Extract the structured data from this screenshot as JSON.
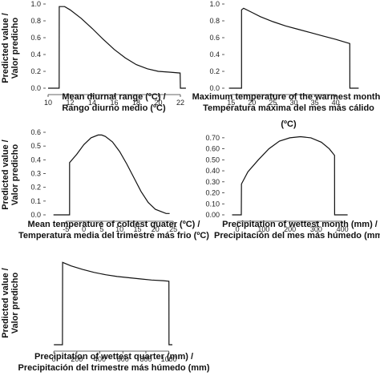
{
  "figure": {
    "ylabels": [
      [
        "Predicted value /",
        "Valor predicho"
      ],
      [
        "Predicted value /",
        "Valor predicho"
      ],
      [
        "Predicted value /",
        "Valor predicho"
      ]
    ]
  },
  "chart_data": [
    {
      "type": "line",
      "xlabel": [
        "Mean diurnal range (ºC) /",
        "Rango diurno medio (ºC)"
      ],
      "xlim": [
        10,
        22
      ],
      "ylim": [
        0,
        1.0
      ],
      "xticks": [
        10,
        12,
        14,
        16,
        18,
        20,
        22
      ],
      "yticks": [
        0,
        0.2,
        0.4,
        0.6,
        0.8,
        1.0
      ],
      "ytick_labels": [
        "0.0",
        "0.2",
        "0.4",
        "0.6",
        "0.8",
        "1.0"
      ],
      "series": [
        {
          "x": [
            10,
            11,
            11.01,
            11.5,
            12,
            13,
            14,
            15,
            16,
            17,
            18,
            19,
            20,
            21,
            21.98,
            22,
            22.5
          ],
          "y": [
            0,
            0,
            0.97,
            0.97,
            0.93,
            0.83,
            0.71,
            0.58,
            0.46,
            0.36,
            0.28,
            0.23,
            0.2,
            0.19,
            0.18,
            0,
            0
          ]
        }
      ]
    },
    {
      "type": "line",
      "xlabel": [
        "Maximum temperature of the warmest month /",
        "Temperatura máxima del mes más cálido",
        "(ºC)"
      ],
      "xlim": [
        14,
        46
      ],
      "ylim": [
        0,
        1.0
      ],
      "xticks": [
        15,
        20,
        25,
        30,
        35,
        40
      ],
      "yticks": [
        0,
        0.2,
        0.4,
        0.6,
        0.8,
        1.0
      ],
      "ytick_labels": [
        "0.0",
        "0.2",
        "0.4",
        "0.6",
        "0.8",
        "1.0"
      ],
      "series": [
        {
          "x": [
            14.5,
            17.5,
            17.51,
            18,
            20,
            22,
            25,
            28,
            31,
            34,
            37,
            40,
            42,
            43.38,
            43.4,
            45.5
          ],
          "y": [
            0,
            0,
            0.93,
            0.95,
            0.9,
            0.85,
            0.79,
            0.74,
            0.7,
            0.66,
            0.62,
            0.58,
            0.55,
            0.53,
            0,
            0
          ]
        }
      ]
    },
    {
      "type": "line",
      "xlabel": [
        "Mean temperature of coldest quater (ºC) /",
        "Temperatura media del trimestre más frio (ºC)"
      ],
      "xlim": [
        -10,
        27
      ],
      "ylim": [
        0,
        0.6
      ],
      "xticks": [
        -5,
        0,
        5,
        10,
        15,
        20,
        25
      ],
      "xtick_labels": [
        "-5",
        "0",
        "5",
        "10",
        "15",
        "20",
        "25"
      ],
      "yticks": [
        0,
        0.1,
        0.2,
        0.3,
        0.4,
        0.5,
        0.6
      ],
      "ytick_labels": [
        "0.0",
        "0.1",
        "0.2",
        "0.3",
        "0.4",
        "0.5",
        "0.6"
      ],
      "series": [
        {
          "x": [
            -8.5,
            -4,
            -3.99,
            -2,
            0,
            2,
            4,
            5,
            6,
            8,
            10,
            12,
            14,
            16,
            18,
            20,
            22,
            23,
            24
          ],
          "y": [
            0,
            0,
            0.38,
            0.44,
            0.51,
            0.56,
            0.58,
            0.58,
            0.57,
            0.53,
            0.46,
            0.37,
            0.27,
            0.17,
            0.09,
            0.04,
            0.02,
            0.01,
            0.01
          ]
        }
      ]
    },
    {
      "type": "line",
      "xlabel": [
        "Precipitation of wettest month (mm) /",
        "Precipitación del mes más húmedo (mm)"
      ],
      "xlim": [
        -40,
        470
      ],
      "ylim": [
        0,
        0.75
      ],
      "xticks": [
        0,
        100,
        200,
        300,
        400
      ],
      "yticks": [
        0,
        0.1,
        0.2,
        0.3,
        0.4,
        0.5,
        0.6,
        0.7
      ],
      "ytick_labels": [
        "0.00",
        "0.10",
        "0.20",
        "0.30",
        "0.40",
        "0.50",
        "0.60",
        "0.70"
      ],
      "series": [
        {
          "x": [
            -20,
            15,
            15.5,
            40,
            80,
            120,
            160,
            200,
            240,
            280,
            320,
            350,
            370,
            370.5,
            420
          ],
          "y": [
            0,
            0,
            0.28,
            0.39,
            0.5,
            0.6,
            0.67,
            0.7,
            0.71,
            0.7,
            0.66,
            0.6,
            0.54,
            0,
            0
          ]
        }
      ]
    },
    {
      "type": "line",
      "xlabel": [
        "Precipitation of wettest quarter (mm) /",
        "Precipitación del trimestre más húmedo (mm)"
      ],
      "xlim": [
        -50,
        1100
      ],
      "ylim": [
        0,
        0.75
      ],
      "xticks": [
        0,
        200,
        400,
        600,
        800,
        1000
      ],
      "yticks": [],
      "series": [
        {
          "x": [
            0,
            75,
            76,
            150,
            250,
            350,
            450,
            550,
            650,
            750,
            850,
            950,
            1000,
            1001,
            1030
          ],
          "y": [
            0,
            0,
            0.7,
            0.67,
            0.64,
            0.615,
            0.595,
            0.58,
            0.57,
            0.56,
            0.55,
            0.545,
            0.54,
            0,
            0
          ]
        }
      ]
    }
  ]
}
